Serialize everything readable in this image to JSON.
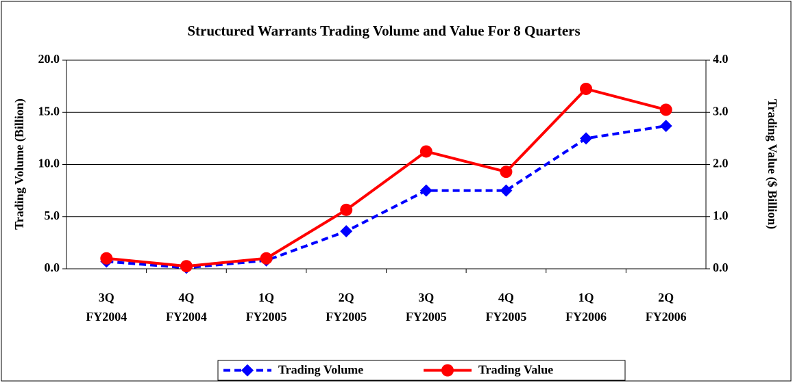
{
  "chart_data": {
    "type": "line",
    "title": "Structured Warrants Trading Volume and Value For 8 Quarters",
    "categories": [
      [
        "3Q",
        "FY2004"
      ],
      [
        "4Q",
        "FY2004"
      ],
      [
        "1Q",
        "FY2005"
      ],
      [
        "2Q",
        "FY2005"
      ],
      [
        "3Q",
        "FY2005"
      ],
      [
        "4Q",
        "FY2005"
      ],
      [
        "1Q",
        "FY2006"
      ],
      [
        "2Q",
        "FY2006"
      ]
    ],
    "y_label": "Trading Volume (Billion)",
    "y2_label": "Trading Value ($ Billion)",
    "ylim": [
      0,
      20
    ],
    "yticks": [
      {
        "value": 0,
        "label": "0.0"
      },
      {
        "value": 5,
        "label": "5.0"
      },
      {
        "value": 10,
        "label": "10.0"
      },
      {
        "value": 15,
        "label": "15.0"
      },
      {
        "value": 20,
        "label": "20.0"
      }
    ],
    "y2lim": [
      0,
      4
    ],
    "y2ticks": [
      {
        "value": 0,
        "label": "0.0"
      },
      {
        "value": 1,
        "label": "1.0"
      },
      {
        "value": 2,
        "label": "2.0"
      },
      {
        "value": 3,
        "label": "3.0"
      },
      {
        "value": 4,
        "label": "4.0"
      }
    ],
    "grid": true,
    "legend": "bottom",
    "series": [
      {
        "name": "Trading Volume",
        "color": "#0000ff",
        "marker": "diamond",
        "dash": true,
        "values": [
          0.7,
          0.1,
          0.8,
          3.6,
          7.5,
          7.5,
          12.5,
          13.7
        ]
      },
      {
        "name": "Trading Value",
        "color": "#ff0000",
        "marker": "circle",
        "dash": false,
        "axis": "y2",
        "values": [
          0.2,
          0.05,
          0.2,
          1.13,
          2.25,
          1.86,
          3.45,
          3.05
        ]
      }
    ]
  }
}
